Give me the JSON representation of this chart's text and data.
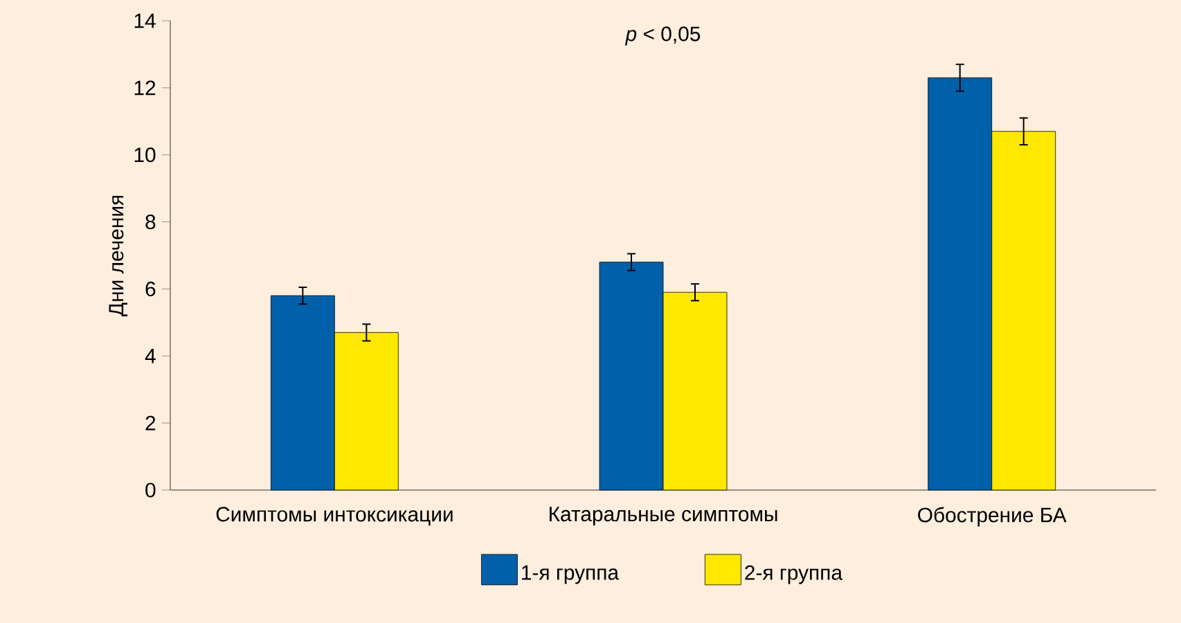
{
  "chart_data": {
    "type": "bar",
    "categories": [
      "Симптомы интоксикации",
      "Катаральные симптомы",
      "Обострение БА"
    ],
    "ylabel": "Дни лечения",
    "ylim": [
      0,
      14
    ],
    "yticks": [
      0,
      2,
      4,
      6,
      8,
      10,
      12,
      14
    ],
    "series": [
      {
        "name": "1-я группа",
        "color": "#0061aa",
        "values": [
          5.8,
          6.8,
          12.3
        ],
        "errors": [
          0.25,
          0.25,
          0.4
        ]
      },
      {
        "name": "2-я группа",
        "color": "#ffe800",
        "values": [
          4.7,
          5.9,
          10.7
        ],
        "errors": [
          0.25,
          0.25,
          0.4
        ]
      }
    ],
    "annotations": [
      "*p* < 0,05"
    ],
    "legend": "bottom"
  }
}
